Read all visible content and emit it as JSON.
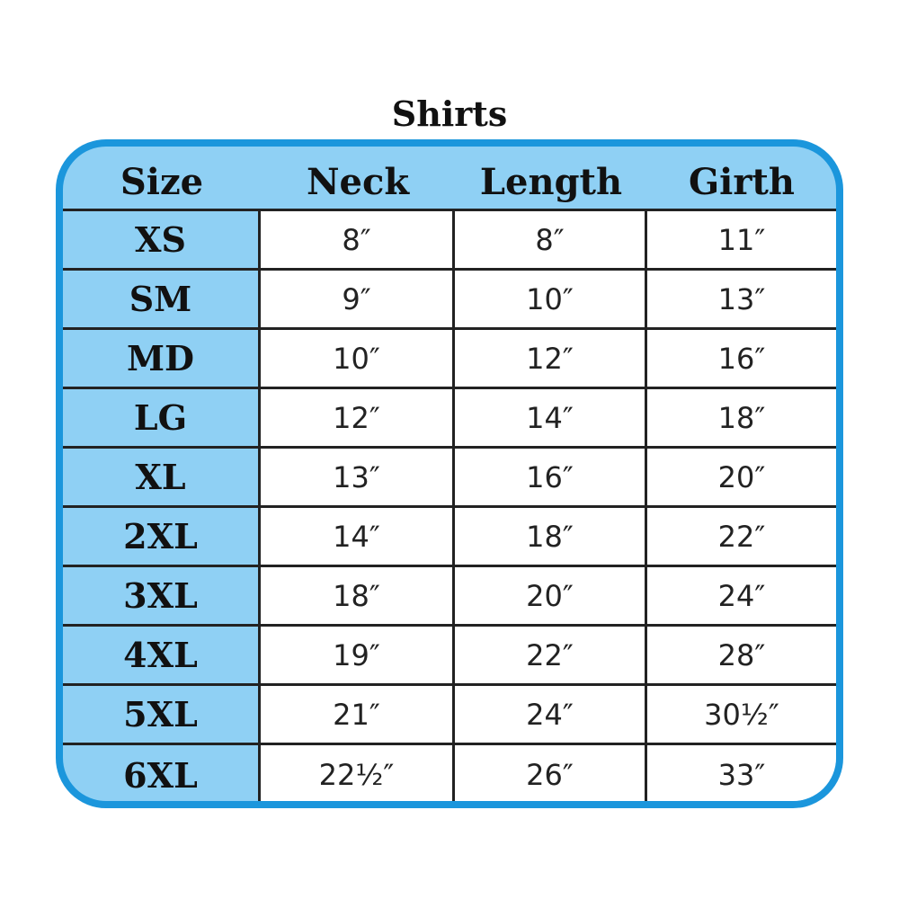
{
  "title": "Shirts",
  "colors": {
    "border": "#1b96dc",
    "header_fill": "#8fd0f4",
    "cell_fill": "#ffffff"
  },
  "columns": [
    "Size",
    "Neck",
    "Length",
    "Girth"
  ],
  "rows": [
    [
      "XS",
      "8″",
      "8″",
      "11″"
    ],
    [
      "SM",
      "9″",
      "10″",
      "13″"
    ],
    [
      "MD",
      "10″",
      "12″",
      "16″"
    ],
    [
      "LG",
      "12″",
      "14″",
      "18″"
    ],
    [
      "XL",
      "13″",
      "16″",
      "20″"
    ],
    [
      "2XL",
      "14″",
      "18″",
      "22″"
    ],
    [
      "3XL",
      "18″",
      "20″",
      "24″"
    ],
    [
      "4XL",
      "19″",
      "22″",
      "28″"
    ],
    [
      "5XL",
      "21″",
      "24″",
      "30½″"
    ],
    [
      "6XL",
      "22½″",
      "26″",
      "33″"
    ]
  ]
}
